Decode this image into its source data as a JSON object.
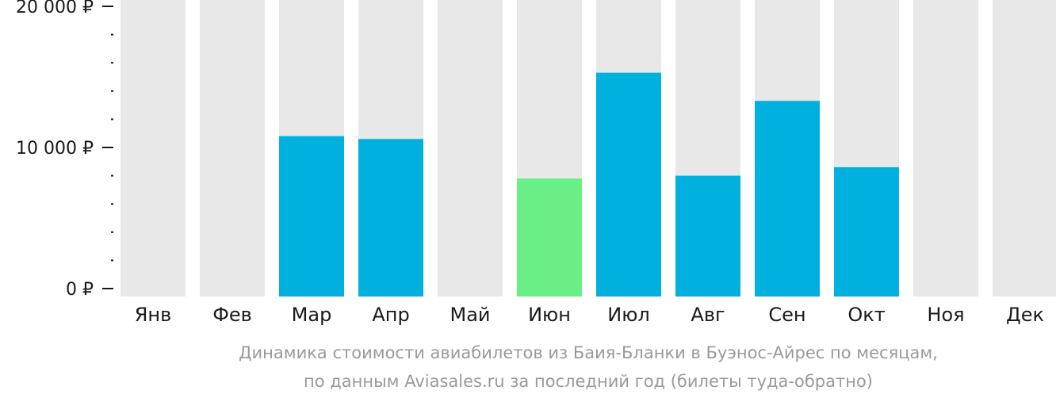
{
  "chart_data": {
    "type": "bar",
    "categories": [
      "Янв",
      "Фев",
      "Мар",
      "Апр",
      "Май",
      "Июн",
      "Июл",
      "Авг",
      "Сен",
      "Окт",
      "Ноя",
      "Дек"
    ],
    "values": [
      null,
      null,
      10800,
      10600,
      null,
      7800,
      15300,
      8000,
      13300,
      8600,
      null,
      null
    ],
    "highlight_category": "Июн",
    "ylim": [
      0,
      20000
    ],
    "yticks": [
      {
        "value": 0,
        "label": "0 ₽"
      },
      {
        "value": 10000,
        "label": "10 000 ₽"
      },
      {
        "value": 20000,
        "label": "20 000 ₽"
      }
    ],
    "minor_tick_step": 2000,
    "grid": false,
    "colors": {
      "bar": "#00b0de",
      "highlight": "#6aef86",
      "background_column": "#e8e8e8",
      "axis": "#1a1a1a"
    },
    "caption": [
      "Динамика стоимости авиабилетов из Баия-Бланки в Буэнос-Айрес по месяцам,",
      "по данным Aviasales.ru за последний год (билеты туда-обратно)"
    ]
  }
}
